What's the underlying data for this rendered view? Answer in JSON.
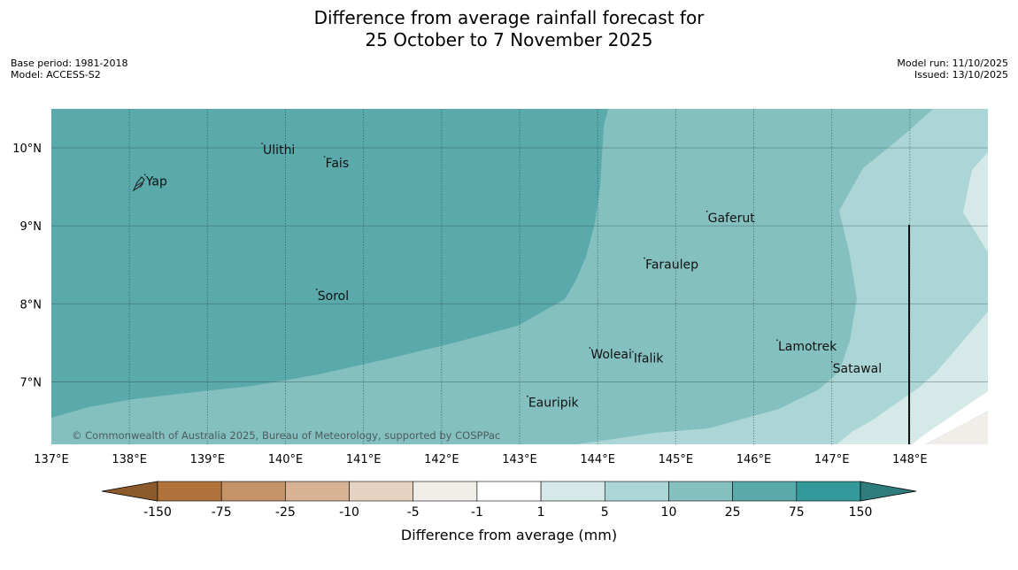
{
  "title": {
    "line1": "Difference from average rainfall forecast for",
    "line2": "25 October to 7 November 2025"
  },
  "meta": {
    "base_period": "Base period: 1981-2018",
    "model": "Model: ACCESS-S2",
    "model_run": "Model run: 11/10/2025",
    "issued": "Issued: 13/10/2025"
  },
  "map": {
    "lon_range": [
      137,
      149
    ],
    "lat_range": [
      6.2,
      10.5
    ],
    "x_ticks": [
      {
        "lon": 137,
        "label": "137°E"
      },
      {
        "lon": 138,
        "label": "138°E"
      },
      {
        "lon": 139,
        "label": "139°E"
      },
      {
        "lon": 140,
        "label": "140°E"
      },
      {
        "lon": 141,
        "label": "141°E"
      },
      {
        "lon": 142,
        "label": "142°E"
      },
      {
        "lon": 143,
        "label": "143°E"
      },
      {
        "lon": 144,
        "label": "144°E"
      },
      {
        "lon": 145,
        "label": "145°E"
      },
      {
        "lon": 146,
        "label": "146°E"
      },
      {
        "lon": 147,
        "label": "147°E"
      },
      {
        "lon": 148,
        "label": "148°E"
      }
    ],
    "y_ticks": [
      {
        "lat": 10,
        "label": "10°N"
      },
      {
        "lat": 9,
        "label": "9°N"
      },
      {
        "lat": 8,
        "label": "8°N"
      },
      {
        "lat": 7,
        "label": "7°N"
      }
    ],
    "places": [
      {
        "name": "Yap",
        "lon": 138.2,
        "lat": 9.52
      },
      {
        "name": "Ulithi",
        "lon": 139.7,
        "lat": 9.92
      },
      {
        "name": "Fais",
        "lon": 140.5,
        "lat": 9.75
      },
      {
        "name": "Gaferut",
        "lon": 145.4,
        "lat": 9.05
      },
      {
        "name": "Faraulep",
        "lon": 144.6,
        "lat": 8.45
      },
      {
        "name": "Sorol",
        "lon": 140.4,
        "lat": 8.05
      },
      {
        "name": "Lamotrek",
        "lon": 146.3,
        "lat": 7.4
      },
      {
        "name": "Satawal",
        "lon": 147.0,
        "lat": 7.12
      },
      {
        "name": "Woleai",
        "lon": 143.9,
        "lat": 7.3
      },
      {
        "name": "Ifalik",
        "lon": 144.45,
        "lat": 7.25
      },
      {
        "name": "Eauripik",
        "lon": 143.1,
        "lat": 6.68
      }
    ],
    "copyright": "© Commonwealth of Australia 2025, Bureau of Meteorology, supported by COSPPac"
  },
  "legend": {
    "title": "Difference from average (mm)",
    "labels": [
      "-150",
      "-75",
      "-25",
      "-10",
      "-5",
      "-1",
      "1",
      "5",
      "10",
      "25",
      "75",
      "150"
    ],
    "colors": {
      "extend_low": "#8c5a2b",
      "bins": [
        "#b0733b",
        "#c49468",
        "#d7b394",
        "#e5d2c1",
        "#f1ede8",
        "#ffffff",
        "#d5e9e8",
        "#abd6d5",
        "#84c0bf",
        "#5aa9ab",
        "#33999a"
      ],
      "extend_high": "#2e7c7c"
    }
  }
}
